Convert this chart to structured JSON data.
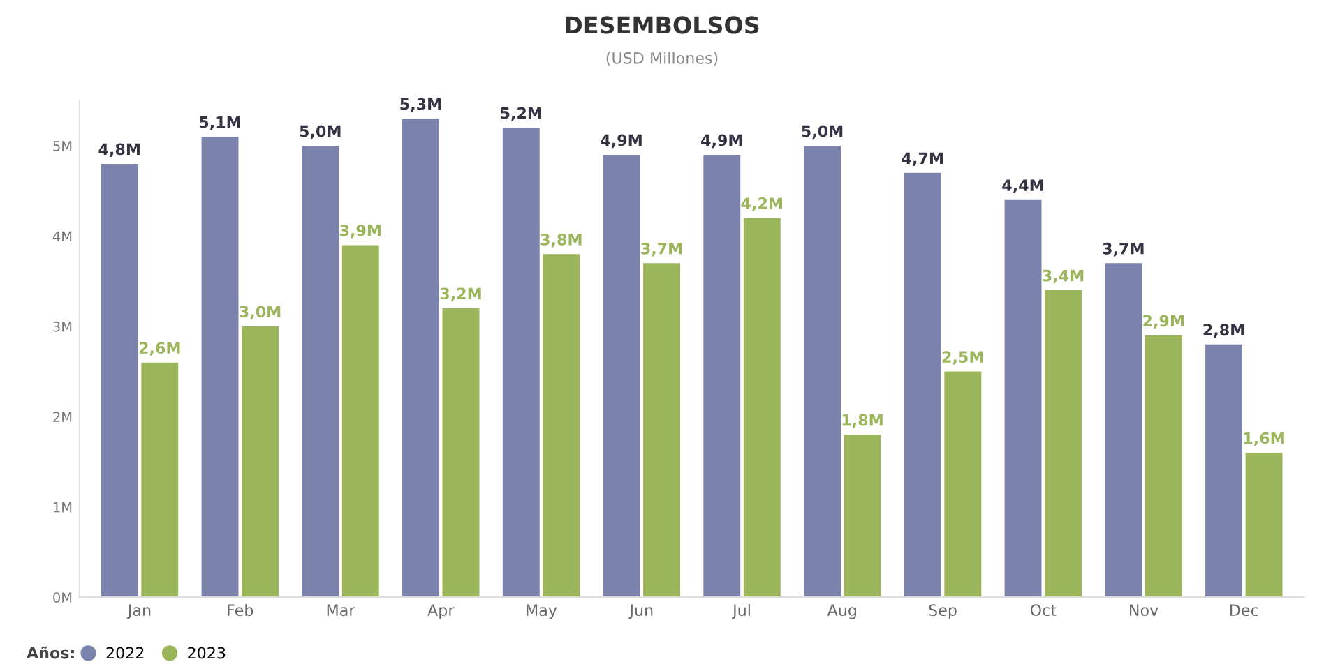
{
  "chart_data": {
    "type": "bar",
    "title": "DESEMBOLSOS",
    "subtitle": "(USD Millones)",
    "categories": [
      "Jan",
      "Feb",
      "Mar",
      "Apr",
      "May",
      "Jun",
      "Jul",
      "Aug",
      "Sep",
      "Oct",
      "Nov",
      "Dec"
    ],
    "series": [
      {
        "name": "2022",
        "color": "#7b82ab",
        "values": [
          4.8,
          5.1,
          5.0,
          5.3,
          5.2,
          4.9,
          4.9,
          5.0,
          4.7,
          4.4,
          3.7,
          2.8
        ],
        "value_labels": [
          "4,8M",
          "5,1M",
          "5,0M",
          "5,3M",
          "5,2M",
          "4,9M",
          "4,9M",
          "5,0M",
          "4,7M",
          "4,4M",
          "3,7M",
          "2,8M"
        ]
      },
      {
        "name": "2023",
        "color": "#9bb55a",
        "values": [
          2.6,
          3.0,
          3.9,
          3.2,
          3.8,
          3.7,
          4.2,
          1.8,
          2.5,
          3.4,
          2.9,
          1.6
        ],
        "value_labels": [
          "2,6M",
          "3,0M",
          "3,9M",
          "3,2M",
          "3,8M",
          "3,7M",
          "4,2M",
          "1,8M",
          "2,5M",
          "3,4M",
          "2,9M",
          "1,6M"
        ]
      }
    ],
    "legend_title": "Años:",
    "legend": "bottom left",
    "ylim": [
      0,
      5.5
    ],
    "yticks": [
      {
        "value": 0,
        "label": "0M"
      },
      {
        "value": 1,
        "label": "1M"
      },
      {
        "value": 2,
        "label": "2M"
      },
      {
        "value": 3,
        "label": "3M"
      },
      {
        "value": 4,
        "label": "4M"
      },
      {
        "value": 5,
        "label": "5M"
      }
    ]
  }
}
